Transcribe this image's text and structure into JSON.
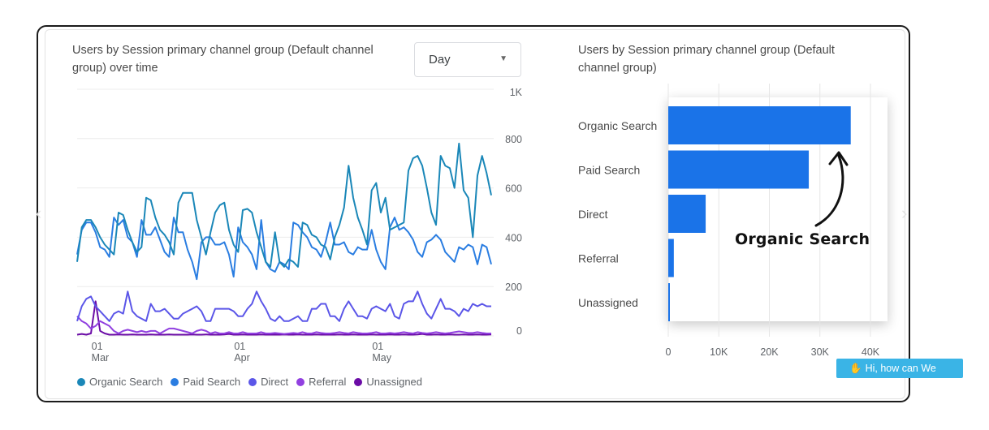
{
  "line_panel": {
    "title": "Users by Session primary channel group (Default channel group) over time",
    "granularity_dropdown": {
      "selected": "Day",
      "icon": "caret-down-icon"
    }
  },
  "bar_panel": {
    "title": "Users by Session primary channel group (Default channel group)",
    "annotation": "Organic Search"
  },
  "chat_widget": {
    "label": "Hi, how can We help?",
    "icon": "waving-hand-icon"
  },
  "colors": {
    "organic": "#1a87b8",
    "paid": "#2a7de1",
    "direct": "#5b56e8",
    "referral": "#9140e0",
    "unassigned": "#6b0ca6",
    "bar": "#1a73e8",
    "chat": "#3ab4e6"
  },
  "chart_data": [
    {
      "type": "line",
      "title": "Users by Session primary channel group (Default channel group) over time",
      "ylim": [
        0,
        1000
      ],
      "y_ticks": [
        "0",
        "200",
        "400",
        "600",
        "800",
        "1K"
      ],
      "y_tick_values": [
        0,
        200,
        400,
        600,
        800,
        1000
      ],
      "x_ticks": [
        {
          "day": "01",
          "month": "Mar",
          "index": 4
        },
        {
          "day": "01",
          "month": "Apr",
          "index": 35
        },
        {
          "day": "01",
          "month": "May",
          "index": 65
        }
      ],
      "grid": true,
      "legend": "bottom",
      "series": [
        {
          "name": "Organic Search",
          "color": "#1a87b8",
          "values": [
            300,
            440,
            470,
            470,
            440,
            400,
            370,
            350,
            330,
            500,
            490,
            430,
            380,
            340,
            360,
            560,
            550,
            480,
            430,
            410,
            380,
            330,
            540,
            580,
            580,
            580,
            470,
            400,
            330,
            420,
            500,
            530,
            540,
            430,
            370,
            340,
            510,
            515,
            500,
            420,
            360,
            300,
            280,
            420,
            300,
            280,
            310,
            300,
            280,
            460,
            450,
            410,
            400,
            370,
            360,
            310,
            400,
            450,
            520,
            690,
            560,
            480,
            430,
            370,
            590,
            620,
            500,
            560,
            430,
            440,
            450,
            460,
            670,
            720,
            730,
            690,
            600,
            500,
            450,
            730,
            690,
            680,
            600,
            780,
            590,
            560,
            400,
            650,
            730,
            660,
            570
          ]
        },
        {
          "name": "Paid Search",
          "color": "#2a7de1",
          "values": [
            330,
            430,
            460,
            460,
            420,
            360,
            350,
            320,
            480,
            450,
            470,
            400,
            380,
            320,
            470,
            410,
            410,
            440,
            390,
            340,
            320,
            480,
            420,
            420,
            350,
            300,
            230,
            380,
            400,
            400,
            370,
            370,
            380,
            330,
            240,
            440,
            380,
            360,
            330,
            270,
            470,
            300,
            270,
            260,
            300,
            290,
            270,
            460,
            450,
            420,
            400,
            360,
            350,
            320,
            380,
            460,
            370,
            370,
            380,
            340,
            330,
            360,
            350,
            350,
            430,
            350,
            300,
            270,
            440,
            480,
            430,
            440,
            420,
            390,
            340,
            320,
            380,
            390,
            410,
            390,
            340,
            320,
            300,
            360,
            350,
            370,
            360,
            290,
            370,
            360,
            290
          ]
        },
        {
          "name": "Direct",
          "color": "#5b56e8",
          "values": [
            60,
            120,
            150,
            160,
            120,
            100,
            80,
            60,
            90,
            100,
            90,
            180,
            100,
            80,
            70,
            60,
            130,
            100,
            100,
            110,
            90,
            70,
            70,
            90,
            100,
            110,
            120,
            100,
            60,
            60,
            110,
            110,
            110,
            110,
            100,
            80,
            80,
            110,
            130,
            180,
            140,
            110,
            70,
            60,
            80,
            60,
            60,
            70,
            80,
            60,
            60,
            110,
            110,
            130,
            130,
            80,
            80,
            60,
            110,
            140,
            110,
            80,
            80,
            70,
            110,
            120,
            110,
            100,
            130,
            80,
            70,
            130,
            140,
            140,
            180,
            130,
            90,
            70,
            110,
            150,
            110,
            110,
            100,
            80,
            110,
            100,
            130,
            120,
            130,
            120,
            120
          ]
        },
        {
          "name": "Referral",
          "color": "#9140e0",
          "values": [
            80,
            60,
            50,
            30,
            40,
            60,
            50,
            40,
            20,
            10,
            20,
            25,
            20,
            15,
            20,
            15,
            20,
            20,
            10,
            20,
            30,
            30,
            25,
            20,
            15,
            10,
            20,
            25,
            20,
            10,
            15,
            10,
            10,
            15,
            10,
            10,
            15,
            10,
            10,
            10,
            15,
            10,
            10,
            12,
            10,
            8,
            10,
            12,
            10,
            15,
            10,
            10,
            15,
            12,
            10,
            10,
            12,
            15,
            12,
            10,
            15,
            12,
            10,
            10,
            12,
            15,
            10,
            10,
            12,
            10,
            12,
            15,
            12,
            10,
            15,
            12,
            10,
            12,
            15,
            12,
            10,
            12,
            15,
            18,
            15,
            12,
            12,
            15,
            12,
            10,
            10
          ]
        },
        {
          "name": "Unassigned",
          "color": "#6b0ca6",
          "values": [
            5,
            8,
            5,
            10,
            140,
            20,
            10,
            5,
            5,
            6,
            5,
            5,
            6,
            5,
            5,
            5,
            6,
            5,
            5,
            5,
            6,
            5,
            5,
            5,
            5,
            6,
            5,
            5,
            6,
            5,
            5,
            5,
            6,
            8,
            5,
            5,
            6,
            5,
            5,
            5,
            6,
            5,
            5,
            5,
            5,
            6,
            5,
            5,
            6,
            5,
            5,
            5,
            6,
            5,
            5,
            5,
            5,
            6,
            5,
            5,
            6,
            5,
            5,
            5,
            6,
            5,
            5,
            5,
            6,
            5,
            5,
            6,
            5,
            5,
            6,
            8,
            5,
            5,
            6,
            5,
            5,
            6,
            5,
            5,
            6,
            5,
            5,
            6,
            5,
            5,
            6
          ]
        }
      ]
    },
    {
      "type": "bar",
      "orientation": "horizontal",
      "title": "Users by Session primary channel group (Default channel group)",
      "categories": [
        "Organic Search",
        "Paid Search",
        "Direct",
        "Referral",
        "Unassigned"
      ],
      "values": [
        36100,
        27800,
        7400,
        1100,
        300
      ],
      "xlim": [
        0,
        40000
      ],
      "x_ticks": [
        "0",
        "10K",
        "20K",
        "30K",
        "40K"
      ],
      "x_tick_values": [
        0,
        10000,
        20000,
        30000,
        40000
      ],
      "grid": true
    }
  ]
}
